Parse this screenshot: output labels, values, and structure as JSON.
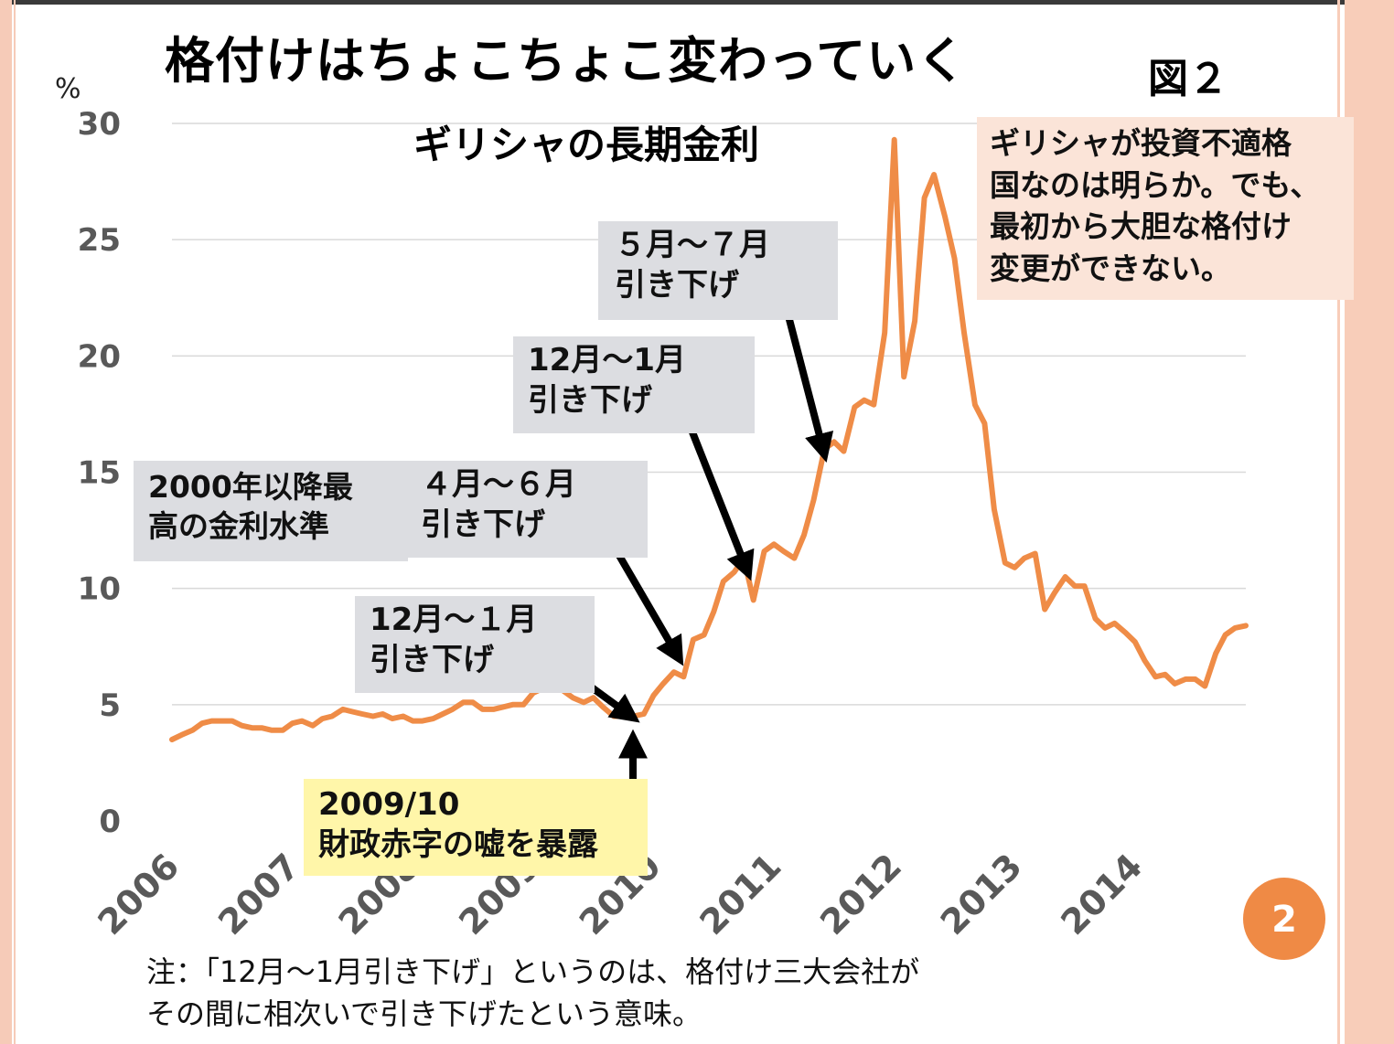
{
  "slide": {
    "title": "格付けはちょこちょこ変わっていく",
    "figure_label": "図２",
    "page_number": "2",
    "note_line1": "注：「12月～1月引き下げ」というのは、格付け三大会社が",
    "note_line2": "その間に相次いで引き下げたという意味。"
  },
  "annotations": {
    "callout_line1": "ギリシャが投資不適格",
    "callout_line2": "国なのは明らか。でも、",
    "callout_line3": "最初から大胆な格付け",
    "callout_line4": "変更ができない。",
    "cut_may_jul_line1": "５月～７月",
    "cut_may_jul_line2": "引き下げ",
    "cut_dec_jan_2010_line1": "12月～1月",
    "cut_dec_jan_2010_line2": "引き下げ",
    "cut_apr_jun_line1": "４月～６月",
    "cut_apr_jun_line2": "引き下げ",
    "high_line1": "2000年以降最",
    "high_line2": "高の金利水準",
    "cut_dec_jan_2009_line1": "12月～１月",
    "cut_dec_jan_2009_line2": "引き下げ",
    "reveal_line1": "2009/10",
    "reveal_line2": "財政赤字の嘘を暴露"
  },
  "colors": {
    "line": "#ef8c47",
    "grid": "#d9d9d9",
    "axis_text": "#595959",
    "arrow": "#000000"
  },
  "chart_data": {
    "type": "line",
    "title": "ギリシャの長期金利",
    "ylabel": "%",
    "xlabel": "",
    "ylim": [
      0,
      30
    ],
    "yticks": [
      0,
      5,
      10,
      15,
      20,
      25,
      30
    ],
    "xlim": [
      2006.0,
      2014.92
    ],
    "xtick_labels": [
      "2006",
      "2007",
      "2008",
      "2009",
      "2010",
      "2011",
      "2012",
      "2013",
      "2014"
    ],
    "grid": true,
    "series": [
      {
        "x": [
          2006.0,
          2006.08,
          2006.17,
          2006.25,
          2006.33,
          2006.42,
          2006.5,
          2006.58,
          2006.67,
          2006.75,
          2006.83,
          2006.92,
          2007.0,
          2007.08,
          2007.17,
          2007.25,
          2007.33,
          2007.42,
          2007.5,
          2007.58,
          2007.67,
          2007.75,
          2007.83,
          2007.92,
          2008.0,
          2008.08,
          2008.17,
          2008.25,
          2008.33,
          2008.42,
          2008.5,
          2008.58,
          2008.67,
          2008.75,
          2008.83,
          2008.92,
          2009.0,
          2009.08,
          2009.17,
          2009.25,
          2009.33,
          2009.42,
          2009.5,
          2009.58,
          2009.67,
          2009.75,
          2009.83,
          2009.92,
          2010.0,
          2010.08,
          2010.17,
          2010.25,
          2010.33,
          2010.42,
          2010.5,
          2010.58,
          2010.67,
          2010.75,
          2010.83,
          2010.92,
          2011.0,
          2011.08,
          2011.17,
          2011.25,
          2011.33,
          2011.42,
          2011.5,
          2011.58,
          2011.67,
          2011.75,
          2011.83,
          2011.92,
          2012.0,
          2012.08,
          2012.17,
          2012.25,
          2012.33,
          2012.42,
          2012.5,
          2012.58,
          2012.67,
          2012.75,
          2012.83,
          2012.92,
          2013.0,
          2013.08,
          2013.17,
          2013.25,
          2013.33,
          2013.42,
          2013.5,
          2013.58,
          2013.67,
          2013.75,
          2013.83,
          2013.92,
          2014.0,
          2014.08,
          2014.17,
          2014.25,
          2014.33,
          2014.42,
          2014.5,
          2014.58,
          2014.67,
          2014.75,
          2014.83,
          2014.92
        ],
        "values": [
          3.5,
          3.7,
          3.9,
          4.2,
          4.3,
          4.3,
          4.3,
          4.1,
          4.0,
          4.0,
          3.9,
          3.9,
          4.2,
          4.3,
          4.1,
          4.4,
          4.5,
          4.8,
          4.7,
          4.6,
          4.5,
          4.6,
          4.4,
          4.5,
          4.3,
          4.3,
          4.4,
          4.6,
          4.8,
          5.1,
          5.1,
          4.8,
          4.8,
          4.9,
          5.0,
          5.0,
          5.5,
          5.7,
          5.9,
          5.6,
          5.3,
          5.1,
          5.3,
          4.9,
          4.5,
          4.5,
          4.5,
          4.6,
          5.4,
          5.9,
          6.4,
          6.2,
          7.8,
          8.0,
          9.0,
          10.3,
          10.7,
          11.3,
          9.5,
          11.6,
          11.9,
          11.6,
          11.3,
          12.3,
          13.8,
          16.0,
          16.3,
          15.9,
          17.8,
          18.1,
          17.9,
          21.0,
          29.3,
          19.1,
          21.5,
          26.8,
          27.8,
          26.0,
          24.2,
          21.0,
          17.9,
          17.1,
          13.4,
          11.1,
          10.9,
          11.3,
          11.5,
          9.1,
          9.8,
          10.5,
          10.1,
          10.1,
          8.7,
          8.3,
          8.5,
          8.1,
          7.7,
          6.9,
          6.2,
          6.3,
          5.9,
          6.1,
          6.1,
          5.8,
          7.2,
          8.0,
          8.3,
          8.4
        ]
      }
    ]
  }
}
